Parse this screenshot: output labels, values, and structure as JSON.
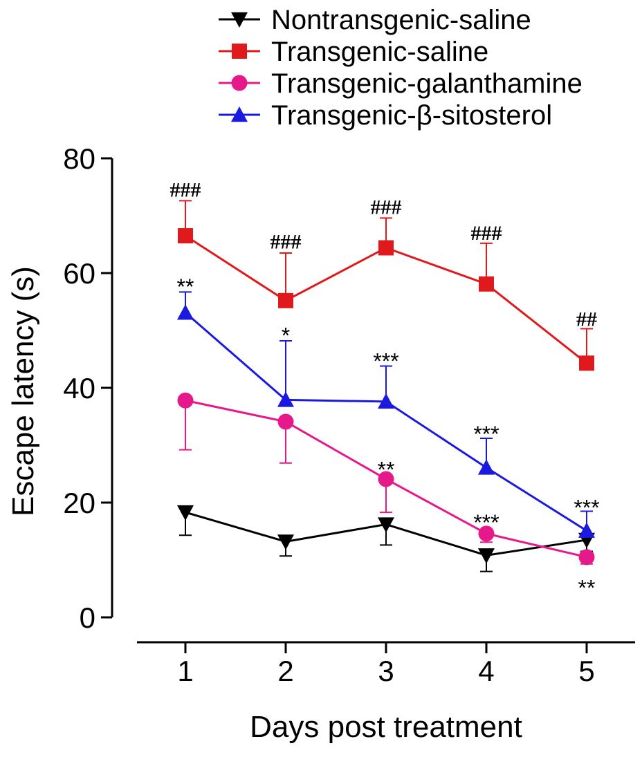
{
  "chart_data": {
    "type": "line",
    "title": "",
    "xlabel": "Days post treatment",
    "ylabel": "Escape latency (s)",
    "categories": [
      "1",
      "2",
      "3",
      "4",
      "5"
    ],
    "x": [
      1,
      2,
      3,
      4,
      5
    ],
    "ylim": [
      0,
      80
    ],
    "yticks": [
      0,
      20,
      40,
      60,
      80
    ],
    "ytick_labels": [
      "0",
      "20",
      "40",
      "60",
      "80"
    ],
    "grid": false,
    "legend_position": "top-right",
    "series": [
      {
        "name": "Nontransgenic-saline",
        "color": "#000000",
        "marker": "triangle-down",
        "values": [
          18.3,
          13.2,
          16.2,
          10.8,
          13.5
        ],
        "err": [
          4.0,
          2.5,
          3.6,
          2.8,
          2.0
        ],
        "err_dir": "down"
      },
      {
        "name": "Transgenic-saline",
        "color": "#e0191c",
        "marker": "square",
        "values": [
          66.5,
          55.2,
          64.4,
          58.1,
          44.3
        ],
        "err": [
          6.1,
          8.3,
          5.2,
          7.1,
          6.0
        ],
        "err_dir": "up"
      },
      {
        "name": "Transgenic-galanthamine",
        "color": "#e6198b",
        "marker": "circle",
        "values": [
          37.8,
          34.1,
          24.1,
          14.6,
          10.5
        ],
        "err": [
          8.6,
          7.2,
          5.8,
          1.5,
          1.2
        ],
        "err_dir": "down"
      },
      {
        "name": "Transgenic-β-sitosterol",
        "color": "#1919e0",
        "marker": "triangle-up",
        "values": [
          53.1,
          37.9,
          37.6,
          26.1,
          15.1
        ],
        "err": [
          3.6,
          10.3,
          6.2,
          5.1,
          3.4
        ],
        "err_dir": "up"
      }
    ],
    "annotations": [
      {
        "text": "###",
        "x": 1,
        "y": 74.5,
        "color": "#000000",
        "kind": "hash"
      },
      {
        "text": "###",
        "x": 2,
        "y": 65.5,
        "color": "#000000",
        "kind": "hash"
      },
      {
        "text": "###",
        "x": 3,
        "y": 71.5,
        "color": "#000000",
        "kind": "hash"
      },
      {
        "text": "###",
        "x": 4,
        "y": 67.0,
        "color": "#000000",
        "kind": "hash"
      },
      {
        "text": "##",
        "x": 5,
        "y": 52.0,
        "color": "#000000",
        "kind": "hash"
      },
      {
        "text": "**",
        "x": 1,
        "y": 57.5,
        "color": "#000000",
        "kind": "star"
      },
      {
        "text": "*",
        "x": 2,
        "y": 49.0,
        "color": "#000000",
        "kind": "star"
      },
      {
        "text": "***",
        "x": 3,
        "y": 44.5,
        "color": "#000000",
        "kind": "star"
      },
      {
        "text": "***",
        "x": 4,
        "y": 31.8,
        "color": "#000000",
        "kind": "star"
      },
      {
        "text": "***",
        "x": 5,
        "y": 19.0,
        "color": "#000000",
        "kind": "star"
      },
      {
        "text": "**",
        "x": 3,
        "y": 25.6,
        "color": "#000000",
        "kind": "star"
      },
      {
        "text": "***",
        "x": 4,
        "y": 16.4,
        "color": "#000000",
        "kind": "star"
      },
      {
        "text": "**",
        "x": 5,
        "y": 5.0,
        "color": "#000000",
        "kind": "star"
      }
    ]
  }
}
